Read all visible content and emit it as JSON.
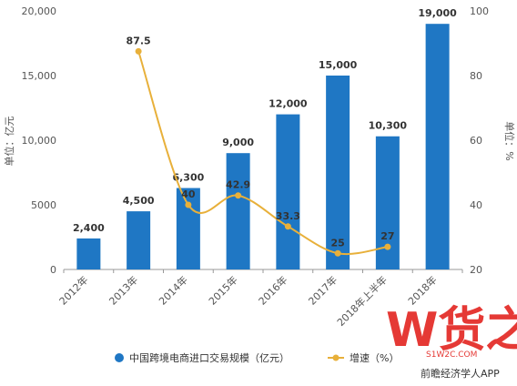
{
  "chart_data": {
    "type": "bar",
    "categories": [
      "2012年",
      "2013年",
      "2014年",
      "2015年",
      "2016年",
      "2017年",
      "2018年上半年",
      "2018年"
    ],
    "series": [
      {
        "name": "中国跨境电商进口交易规模（亿元）",
        "type": "bar",
        "axis": "left",
        "values": [
          2400,
          4500,
          6300,
          9000,
          12000,
          15000,
          10300,
          19000
        ],
        "labels": [
          "2,400",
          "4,500",
          "6,300",
          "9,000",
          "12,000",
          "15,000",
          "10,300",
          "19,000"
        ],
        "color": "#1f77c4"
      },
      {
        "name": "增速（%）",
        "type": "line",
        "axis": "right",
        "values": [
          null,
          87.5,
          40,
          42.9,
          33.3,
          25,
          27,
          null
        ],
        "labels": [
          "",
          "87.5",
          "40",
          "42.9",
          "33.3",
          "25",
          "27",
          ""
        ],
        "color": "#e8b03a"
      }
    ],
    "left_axis": {
      "label": "单位：亿元",
      "range": [
        0,
        20000
      ],
      "ticks": [
        0,
        5000,
        10000,
        15000,
        20000
      ],
      "tick_labels": [
        "0",
        "5000",
        "10,000",
        "15,000",
        "20,000"
      ]
    },
    "right_axis": {
      "label": "单位：%",
      "range": [
        20,
        100
      ],
      "ticks": [
        20,
        40,
        60,
        80,
        100
      ],
      "tick_labels": [
        "20",
        "40",
        "60",
        "80",
        "100"
      ]
    },
    "legend_position": "bottom",
    "grid": false
  },
  "watermark": {
    "logo_text": "W货之家",
    "url": "S1W2C.COM",
    "caption": "前瞻经济学人APP",
    "colors": {
      "logo": "#e53935"
    }
  }
}
